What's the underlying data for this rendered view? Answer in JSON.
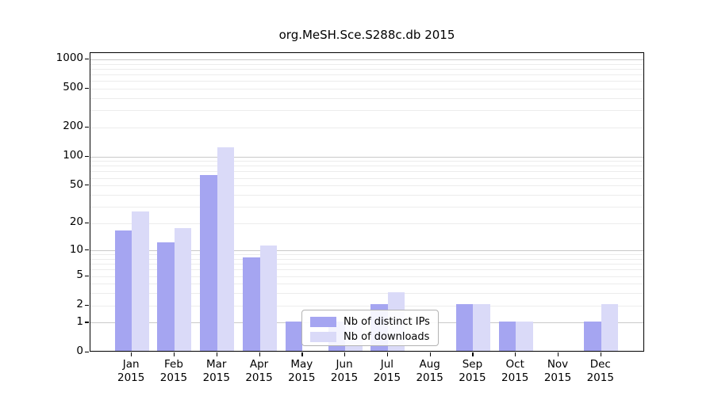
{
  "title": "org.MeSH.Sce.S288c.db 2015",
  "colors": {
    "series_distinct_ips": "#a5a5f1",
    "series_downloads": "#dadaf8",
    "axis": "#000000",
    "grid_major": "#c9c9c9",
    "grid_minor": "#ececec",
    "legend_border": "#b3b3b3",
    "background": "#ffffff"
  },
  "chart_data": {
    "type": "bar",
    "title": "org.MeSH.Sce.S288c.db 2015",
    "categories": [
      "Jan",
      "Feb",
      "Mar",
      "Apr",
      "May",
      "Jun",
      "Jul",
      "Aug",
      "Sep",
      "Oct",
      "Nov",
      "Dec"
    ],
    "x_year": "2015",
    "series": [
      {
        "name": "Nb of distinct IPs",
        "color": "#a5a5f1",
        "values": [
          16,
          12,
          63,
          8,
          1,
          1,
          2,
          0,
          2,
          1,
          0,
          1
        ]
      },
      {
        "name": "Nb of downloads",
        "color": "#dadaf8",
        "values": [
          26,
          17,
          122,
          11,
          0,
          1,
          3,
          0,
          2,
          1,
          0,
          2
        ]
      }
    ],
    "y_scale": "log10(1+x)",
    "y_ticks": [
      0,
      1,
      2,
      5,
      10,
      20,
      50,
      100,
      200,
      500,
      1000
    ],
    "ylim": [
      0,
      1000
    ],
    "grid": {
      "major_lines": [
        1,
        10,
        100,
        1000
      ],
      "minor_lines": [
        2,
        3,
        4,
        5,
        6,
        7,
        8,
        9,
        20,
        30,
        40,
        50,
        60,
        70,
        80,
        90,
        200,
        300,
        400,
        500,
        600,
        700,
        800,
        900
      ]
    },
    "legend": {
      "entries": [
        "Nb of distinct IPs",
        "Nb of downloads"
      ],
      "location": "inside-bottom-center"
    }
  }
}
